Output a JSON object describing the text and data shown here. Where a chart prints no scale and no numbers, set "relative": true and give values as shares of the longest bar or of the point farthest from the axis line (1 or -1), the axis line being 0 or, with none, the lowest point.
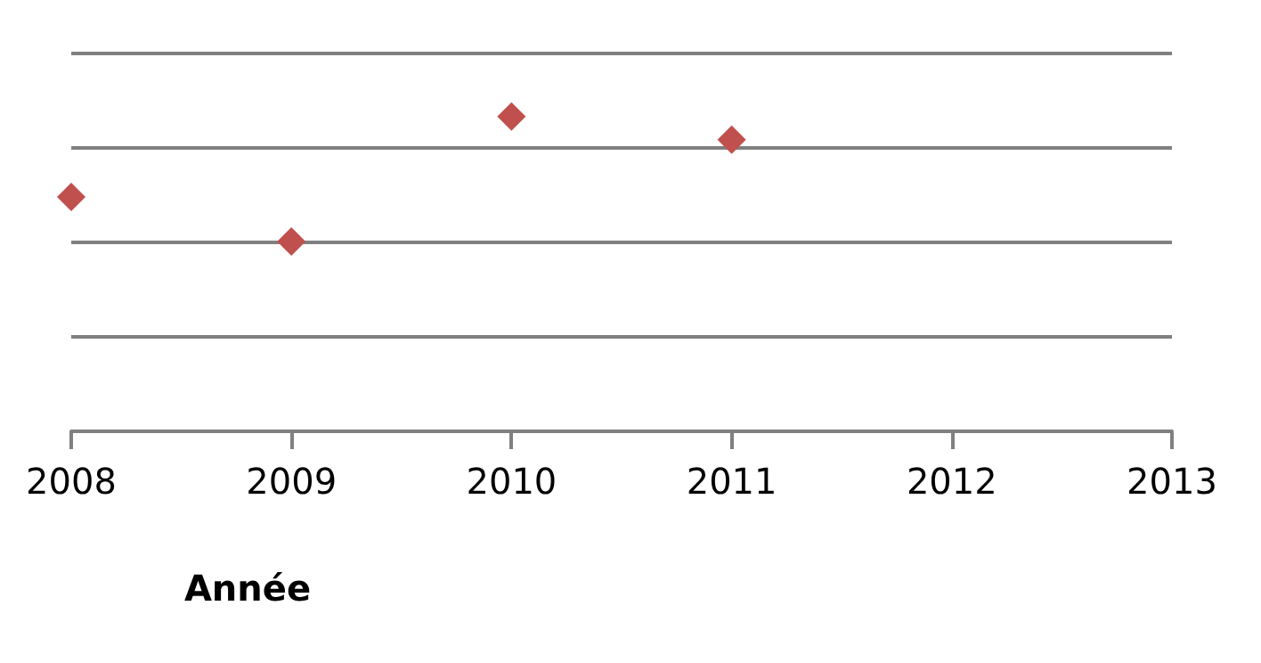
{
  "chart_data": {
    "type": "scatter",
    "xlabel": "Année",
    "relative": true,
    "x": [
      2008,
      2009,
      2010,
      2011
    ],
    "series": [
      {
        "color": "#c0504d",
        "values": [
          0.744,
          0.603,
          1,
          0.926
        ]
      }
    ],
    "xlim": [
      2008,
      2013
    ],
    "xticks": [
      2008,
      2009,
      2010,
      2011,
      2012,
      2013
    ],
    "grid": "y",
    "marker": "diamond"
  }
}
